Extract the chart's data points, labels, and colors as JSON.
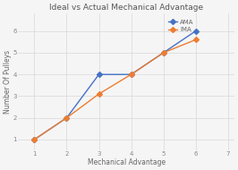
{
  "title": "Ideal vs Actual Mechanical Advantage",
  "xlabel": "Mechanical Advantage",
  "ylabel": "Number Of Pulleys",
  "ima_x": [
    1,
    2,
    3,
    4,
    5,
    6
  ],
  "ima_y": [
    1,
    2,
    4,
    4,
    5,
    6
  ],
  "ama_x": [
    1,
    2,
    3,
    4,
    5,
    6
  ],
  "ama_y": [
    1,
    2,
    3.1,
    4,
    5,
    5.6
  ],
  "ima_color": "#4472c4",
  "ama_color": "#ed7d31",
  "ima_label": "AMA",
  "ama_label": "IMA",
  "xlim": [
    0.5,
    7.2
  ],
  "ylim": [
    0.5,
    6.8
  ],
  "xticks": [
    1,
    2,
    3,
    4,
    5,
    6,
    7
  ],
  "yticks": [
    1,
    2,
    3,
    4,
    5,
    6
  ],
  "grid_color": "#d8d8d8",
  "bg_color": "#f5f5f5",
  "plot_bg": "#f5f5f5",
  "title_fontsize": 6.5,
  "label_fontsize": 5.5,
  "tick_fontsize": 5,
  "legend_fontsize": 5,
  "line_width": 1.0,
  "marker_size": 3
}
